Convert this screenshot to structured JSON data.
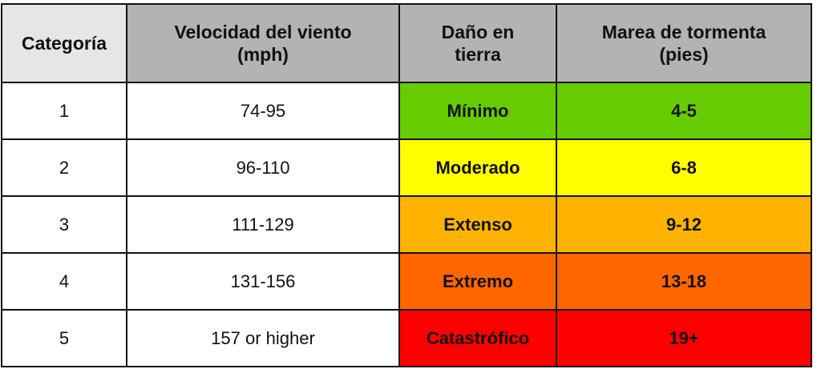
{
  "header": {
    "category": "Categoría",
    "wind_speed_line1": "Velocidad del viento",
    "wind_speed_line2": "(mph)",
    "damage_line1": "Daño en",
    "damage_line2": "tierra",
    "surge_line1": "Marea de tormenta",
    "surge_line2": "(pies)"
  },
  "rows": [
    {
      "category": "1",
      "wind": "74-95",
      "damage": "Mínimo",
      "surge": "4-5",
      "color": "#66cc00"
    },
    {
      "category": "2",
      "wind": "96-110",
      "damage": "Moderado",
      "surge": "6-8",
      "color": "#ffff00"
    },
    {
      "category": "3",
      "wind": "111-129",
      "damage": "Extenso",
      "surge": "9-12",
      "color": "#ffb300"
    },
    {
      "category": "4",
      "wind": "131-156",
      "damage": "Extremo",
      "surge": "13-18",
      "color": "#ff6600"
    },
    {
      "category": "5",
      "wind": "157 or higher",
      "damage": "Catastrófico",
      "surge": "19+",
      "color": "#ff0000"
    }
  ],
  "colors": {
    "header_light": "#e6e6e6",
    "header_dark": "#b3b3b3",
    "border": "#111111"
  }
}
